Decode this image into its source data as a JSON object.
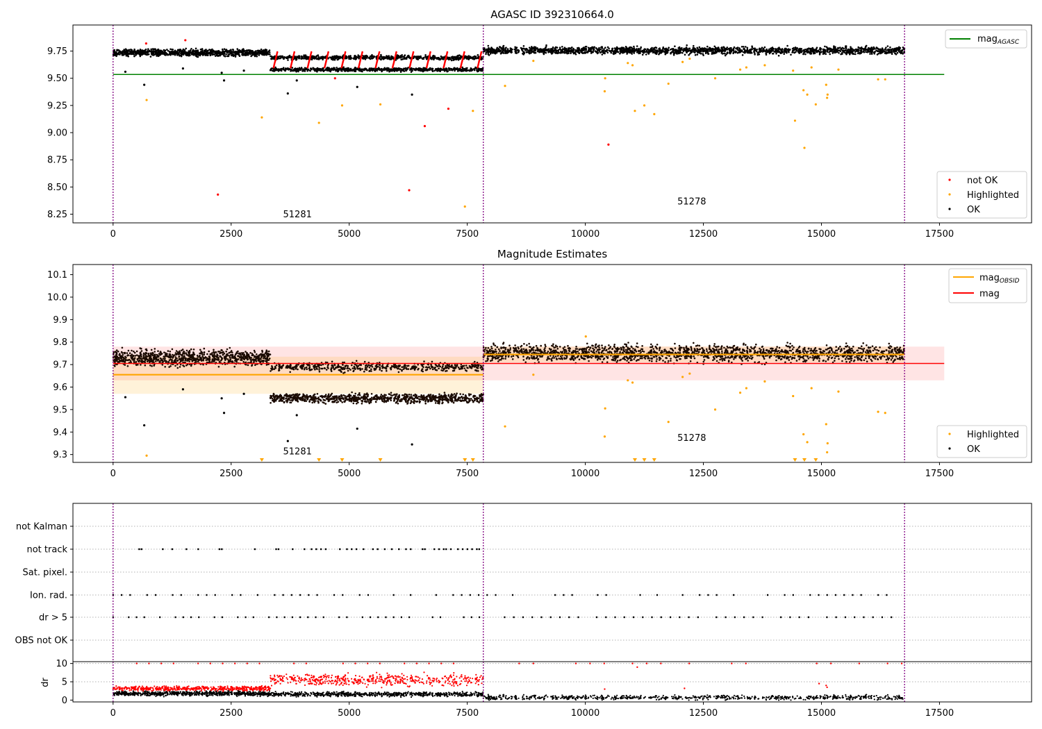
{
  "figure": {
    "title": "AGASC ID 392310664.0"
  },
  "chart_data": [
    {
      "id": "mag-agasc",
      "type": "scatter",
      "title": "AGASC ID 392310664.0",
      "xlim": [
        -850,
        19450
      ],
      "ylim": [
        8.17,
        9.99
      ],
      "xticks": [
        0,
        2500,
        5000,
        7500,
        10000,
        12500,
        15000,
        17500
      ],
      "xtick_labels": [
        "0",
        "2500",
        "5000",
        "7500",
        "10000",
        "12500",
        "15000",
        "17500"
      ],
      "yticks": [
        8.25,
        8.5,
        8.75,
        9.0,
        9.25,
        9.5,
        9.75
      ],
      "ytick_labels": [
        "8.25",
        "8.50",
        "8.75",
        "9.00",
        "9.25",
        "9.50",
        "9.75"
      ],
      "vlines": [
        0,
        7840,
        16760
      ],
      "hlines": [
        {
          "name": "mag_AGASC",
          "y": 9.535,
          "x": [
            0,
            17600
          ],
          "color": "#008000"
        }
      ],
      "bands": [
        {
          "x": [
            0,
            3330
          ],
          "center": 9.735,
          "spread": 0.045
        },
        {
          "x": [
            3330,
            7840
          ],
          "center": 9.66,
          "spread": 0.12
        },
        {
          "x": [
            7840,
            16760
          ],
          "center": 9.755,
          "spread": 0.05
        }
      ],
      "red_spikes": {
        "x_start": 3400,
        "x_end": 7750,
        "step": 360,
        "low": 9.6,
        "high": 9.74
      },
      "annotations": [
        {
          "text": "51281",
          "x": 3600,
          "y": 8.22
        },
        {
          "text": "51278",
          "x": 11950,
          "y": 8.34
        }
      ],
      "series": [
        {
          "name": "not OK",
          "color": "#ff0000",
          "points": [
            [
              700,
              9.82
            ],
            [
              1530,
              9.85
            ],
            [
              2220,
              8.43
            ],
            [
              4700,
              9.5
            ],
            [
              6270,
              8.47
            ],
            [
              6600,
              9.06
            ],
            [
              7100,
              9.22
            ],
            [
              10490,
              8.89
            ]
          ]
        },
        {
          "name": "Highlighted",
          "color": "#ffa500",
          "points": [
            [
              710,
              9.3
            ],
            [
              3150,
              9.14
            ],
            [
              4360,
              9.09
            ],
            [
              4850,
              9.25
            ],
            [
              5660,
              9.26
            ],
            [
              7450,
              8.32
            ],
            [
              7620,
              9.2
            ],
            [
              8300,
              9.43
            ],
            [
              8900,
              9.66
            ],
            [
              10420,
              9.5
            ],
            [
              10410,
              9.38
            ],
            [
              10900,
              9.64
            ],
            [
              11000,
              9.62
            ],
            [
              11050,
              9.2
            ],
            [
              11250,
              9.25
            ],
            [
              11460,
              9.17
            ],
            [
              11760,
              9.45
            ],
            [
              12060,
              9.65
            ],
            [
              12210,
              9.68
            ],
            [
              12750,
              9.5
            ],
            [
              13280,
              9.58
            ],
            [
              13410,
              9.6
            ],
            [
              13800,
              9.62
            ],
            [
              14400,
              9.57
            ],
            [
              14440,
              9.11
            ],
            [
              14620,
              9.39
            ],
            [
              14640,
              8.86
            ],
            [
              14700,
              9.35
            ],
            [
              14790,
              9.6
            ],
            [
              14880,
              9.26
            ],
            [
              15100,
              9.44
            ],
            [
              15130,
              9.35
            ],
            [
              15120,
              9.32
            ],
            [
              15360,
              9.58
            ],
            [
              16200,
              9.49
            ],
            [
              16350,
              9.49
            ]
          ]
        },
        {
          "name": "OK",
          "color": "#000000",
          "points": [
            [
              260,
              9.56
            ],
            [
              660,
              9.44
            ],
            [
              1480,
              9.59
            ],
            [
              2300,
              9.55
            ],
            [
              2350,
              9.48
            ],
            [
              2770,
              9.57
            ],
            [
              3700,
              9.36
            ],
            [
              3890,
              9.48
            ],
            [
              5170,
              9.42
            ],
            [
              6330,
              9.35
            ]
          ]
        }
      ],
      "legends": [
        {
          "position": "top-right",
          "entries": [
            {
              "label": "mag",
              "sub": "AGASC",
              "kind": "line",
              "color": "#008000"
            }
          ]
        },
        {
          "position": "bottom-right",
          "entries": [
            {
              "label": "not OK",
              "kind": "marker",
              "color": "#ff0000"
            },
            {
              "label": "Highlighted",
              "kind": "marker",
              "color": "#ffa500"
            },
            {
              "label": "OK",
              "kind": "marker",
              "color": "#000000"
            }
          ]
        }
      ]
    },
    {
      "id": "magnitude-estimates",
      "type": "scatter",
      "title": "Magnitude Estimates",
      "xlim": [
        -850,
        19450
      ],
      "ylim": [
        9.265,
        10.145
      ],
      "xticks": [
        0,
        2500,
        5000,
        7500,
        10000,
        12500,
        15000,
        17500
      ],
      "xtick_labels": [
        "0",
        "2500",
        "5000",
        "7500",
        "10000",
        "12500",
        "15000",
        "17500"
      ],
      "yticks": [
        9.3,
        9.4,
        9.5,
        9.6,
        9.7,
        9.8,
        9.9,
        10.0,
        10.1
      ],
      "ytick_labels": [
        "9.3",
        "9.4",
        "9.5",
        "9.6",
        "9.7",
        "9.8",
        "9.9",
        "10.0",
        "10.1"
      ],
      "vlines": [
        0,
        7840,
        16760
      ],
      "mag_line": {
        "name": "mag",
        "y": 9.705,
        "x": [
          0,
          17600
        ],
        "band": [
          9.63,
          9.78
        ],
        "color": "#ff0000",
        "band_color": "#ffdddd"
      },
      "obsid_segments": [
        {
          "x": [
            0,
            7840
          ],
          "y": 9.655,
          "band": [
            9.57,
            9.735
          ]
        },
        {
          "x": [
            7840,
            16760
          ],
          "y": 9.745,
          "band": [
            9.71,
            9.78
          ]
        }
      ],
      "bands": [
        {
          "x": [
            0,
            3330
          ],
          "center": 9.73,
          "spread": 0.05
        },
        {
          "x": [
            3330,
            7840
          ],
          "center": 9.6,
          "spread": 0.14
        },
        {
          "x": [
            7840,
            16760
          ],
          "center": 9.75,
          "spread": 0.055
        }
      ],
      "annotations": [
        {
          "text": "51281",
          "x": 3600,
          "y": 9.3
        },
        {
          "text": "51278",
          "x": 11950,
          "y": 9.36
        }
      ],
      "series": [
        {
          "name": "Highlighted",
          "color": "#ffa500",
          "points": [
            [
              710,
              9.295
            ],
            [
              8300,
              9.425
            ],
            [
              8900,
              9.655
            ],
            [
              10010,
              9.825
            ],
            [
              10420,
              9.505
            ],
            [
              10410,
              9.38
            ],
            [
              10900,
              9.63
            ],
            [
              11000,
              9.62
            ],
            [
              11760,
              9.445
            ],
            [
              12060,
              9.645
            ],
            [
              12210,
              9.66
            ],
            [
              12750,
              9.5
            ],
            [
              13280,
              9.575
            ],
            [
              13410,
              9.595
            ],
            [
              13800,
              9.625
            ],
            [
              14400,
              9.56
            ],
            [
              14620,
              9.39
            ],
            [
              14700,
              9.355
            ],
            [
              14790,
              9.595
            ],
            [
              15100,
              9.435
            ],
            [
              15130,
              9.35
            ],
            [
              15120,
              9.31
            ],
            [
              15360,
              9.58
            ],
            [
              16200,
              9.49
            ],
            [
              16350,
              9.485
            ]
          ]
        },
        {
          "name": "OK",
          "color": "#000000",
          "points": [
            [
              260,
              9.555
            ],
            [
              660,
              9.43
            ],
            [
              1480,
              9.59
            ],
            [
              2300,
              9.55
            ],
            [
              2350,
              9.485
            ],
            [
              2770,
              9.57
            ],
            [
              3700,
              9.36
            ],
            [
              3890,
              9.475
            ],
            [
              5170,
              9.415
            ],
            [
              6330,
              9.345
            ]
          ]
        }
      ],
      "below_markers": [
        3150,
        4360,
        4850,
        5660,
        7450,
        7620,
        11050,
        11250,
        11460,
        14440,
        14640,
        14880
      ],
      "legends": [
        {
          "position": "top-right",
          "entries": [
            {
              "label": "mag",
              "sub": "OBSID",
              "kind": "line",
              "color": "#ffa500"
            },
            {
              "label": "mag",
              "kind": "line",
              "color": "#ff0000"
            }
          ]
        },
        {
          "position": "bottom-right",
          "entries": [
            {
              "label": "Highlighted",
              "kind": "marker",
              "color": "#ffa500"
            },
            {
              "label": "OK",
              "kind": "marker",
              "color": "#000000"
            }
          ]
        }
      ]
    },
    {
      "id": "flags",
      "type": "scatter",
      "xlim": [
        -850,
        19450
      ],
      "categories": [
        "not Kalman",
        "not track",
        "Sat. pixel.",
        "Ion. rad.",
        "dr > 5",
        "OBS not OK"
      ],
      "vlines": [
        0,
        7840,
        16760
      ],
      "not_track_x": [
        550,
        600,
        1050,
        1250,
        1550,
        1800,
        2250,
        2300,
        3000,
        3450,
        3500,
        3800,
        4050,
        4200,
        4300,
        4400,
        4500,
        4800,
        4950,
        5050,
        5150,
        5300,
        5500,
        5600,
        5750,
        5900,
        6050,
        6200,
        6300,
        6550,
        6600,
        6800,
        6900,
        7000,
        7050,
        7150,
        7300,
        7400,
        7500,
        7600,
        7700,
        7750
      ],
      "ion_step": 180,
      "dr_step": 165
    },
    {
      "id": "dr",
      "type": "scatter",
      "ylabel": "dr",
      "xlim": [
        -850,
        19450
      ],
      "ylim": [
        -0.5,
        10.5
      ],
      "xticks": [
        0,
        2500,
        5000,
        7500,
        10000,
        12500,
        15000,
        17500
      ],
      "xtick_labels": [
        "0",
        "2500",
        "5000",
        "7500",
        "10000",
        "12500",
        "15000",
        "17500"
      ],
      "yticks": [
        0,
        5,
        10
      ],
      "ytick_labels": [
        "0",
        "5",
        "10"
      ],
      "vlines": [
        0,
        7840,
        16760
      ],
      "segments": [
        {
          "x": [
            0,
            3330
          ],
          "black": 1.8,
          "red": 3.2
        },
        {
          "x": [
            3330,
            7840
          ],
          "black": 1.6,
          "red": 5.5
        },
        {
          "x": [
            7840,
            16760
          ],
          "black": 0.7,
          "red": 0
        }
      ],
      "red_outliers": [
        [
          10410,
          3.0
        ],
        [
          11100,
          9.0
        ],
        [
          12100,
          3.2
        ],
        [
          14950,
          4.5
        ],
        [
          15100,
          4.0
        ],
        [
          15120,
          3.5
        ]
      ]
    }
  ]
}
